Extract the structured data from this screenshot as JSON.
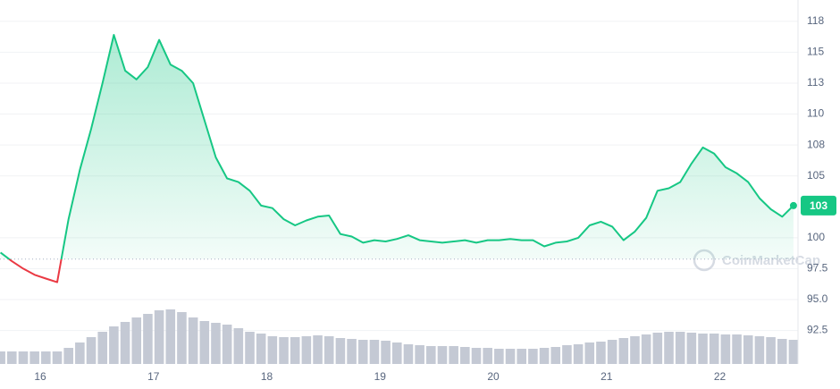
{
  "chart_data": {
    "type": "price",
    "watermark": "CoinMarketCap",
    "x": [
      15.65,
      15.75,
      15.85,
      15.95,
      16.05,
      16.15,
      16.25,
      16.35,
      16.45,
      16.55,
      16.65,
      16.75,
      16.85,
      16.95,
      17.05,
      17.15,
      17.25,
      17.35,
      17.45,
      17.55,
      17.65,
      17.75,
      17.85,
      17.95,
      18.05,
      18.15,
      18.25,
      18.35,
      18.45,
      18.55,
      18.65,
      18.75,
      18.85,
      18.95,
      19.05,
      19.15,
      19.25,
      19.35,
      19.45,
      19.55,
      19.65,
      19.75,
      19.85,
      19.95,
      20.05,
      20.15,
      20.25,
      20.35,
      20.45,
      20.55,
      20.65,
      20.75,
      20.85,
      20.95,
      21.05,
      21.15,
      21.25,
      21.35,
      21.45,
      21.55,
      21.65,
      21.75,
      21.85,
      21.95,
      22.05,
      22.15,
      22.25,
      22.35,
      22.45,
      22.55,
      22.65
    ],
    "values": [
      98.8,
      98.1,
      97.5,
      97.0,
      96.7,
      96.4,
      101.5,
      105.5,
      108.8,
      112.5,
      116.4,
      113.5,
      112.8,
      113.8,
      116.0,
      114.0,
      113.5,
      112.5,
      109.5,
      106.5,
      104.8,
      104.5,
      103.8,
      102.6,
      102.4,
      101.5,
      101.0,
      101.4,
      101.7,
      101.8,
      100.3,
      100.1,
      99.6,
      99.8,
      99.7,
      99.9,
      100.2,
      99.8,
      99.7,
      99.6,
      99.7,
      99.8,
      99.6,
      99.8,
      99.8,
      99.9,
      99.8,
      99.8,
      99.3,
      99.6,
      99.7,
      100.0,
      101.0,
      101.3,
      100.9,
      99.8,
      100.5,
      101.6,
      103.8,
      104.0,
      104.5,
      106.0,
      107.3,
      106.8,
      105.7,
      105.2,
      104.5,
      103.2,
      102.3,
      101.7,
      102.6
    ],
    "volume": [
      14,
      14,
      14,
      14,
      14,
      14,
      18,
      24,
      30,
      36,
      42,
      47,
      52,
      56,
      60,
      61,
      58,
      52,
      48,
      46,
      44,
      40,
      36,
      34,
      31,
      30,
      30,
      31,
      32,
      31,
      29,
      28,
      27,
      27,
      26,
      24,
      22,
      21,
      20,
      20,
      20,
      19,
      18,
      18,
      17,
      17,
      17,
      17,
      18,
      19,
      21,
      22,
      24,
      25,
      27,
      29,
      31,
      33,
      35,
      36,
      36,
      35,
      34,
      34,
      33,
      33,
      32,
      31,
      30,
      28,
      27
    ],
    "baseline": 98.27,
    "current_price": {
      "value": 102.6,
      "label": "103"
    },
    "colors": {
      "up": "#16c784",
      "down": "#ea3943",
      "volume": "#c4c9d4"
    },
    "xlim": [
      15.645,
      22.69
    ],
    "xticks": [
      16,
      17,
      18,
      19,
      20,
      21,
      22
    ],
    "ylim": [
      90.3,
      118.5
    ],
    "yticks": [
      {
        "value": 117.5,
        "label": "118"
      },
      115,
      {
        "value": 112.5,
        "label": "113"
      },
      110,
      {
        "value": 107.5,
        "label": "108"
      },
      105,
      100,
      97.5,
      {
        "value": 95,
        "label": "95.0"
      },
      92.5
    ],
    "grid": true
  }
}
